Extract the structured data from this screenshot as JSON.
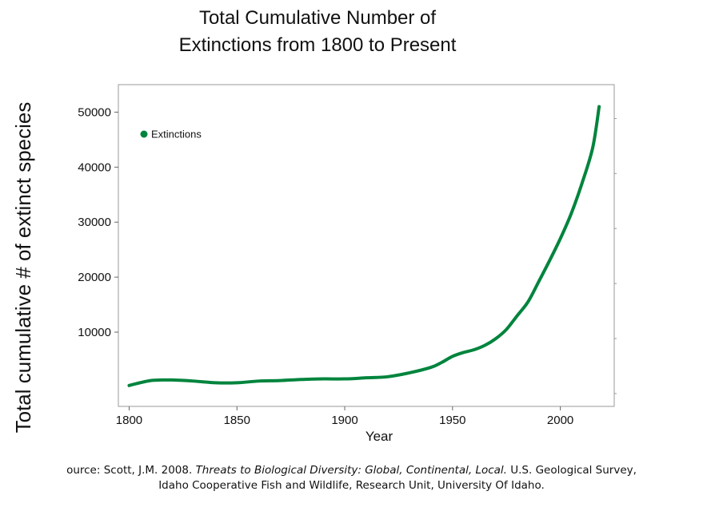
{
  "chart_data": {
    "type": "line",
    "title_lines": [
      "Total Cumulative Number of",
      "Extinctions from 1800 to Present"
    ],
    "xlabel": "Year",
    "ylabel": "Total cumulative # of extinct species",
    "xlim": [
      1795,
      2025
    ],
    "ylim": [
      -3500,
      55000
    ],
    "x_ticks": [
      1800,
      1850,
      1900,
      1950,
      2000
    ],
    "y_ticks": [
      10000,
      20000,
      30000,
      40000,
      50000
    ],
    "grid": false,
    "legend_position": "top-left",
    "series": [
      {
        "name": "Extinctions",
        "color": "#00843d",
        "x": [
          1800,
          1805,
          1810,
          1815,
          1820,
          1830,
          1840,
          1850,
          1860,
          1870,
          1880,
          1890,
          1900,
          1910,
          1920,
          1930,
          1940,
          1945,
          1950,
          1955,
          1960,
          1965,
          1970,
          1975,
          1980,
          1985,
          1990,
          1995,
          2000,
          2005,
          2010,
          2015,
          2018
        ],
        "y": [
          300,
          800,
          1200,
          1300,
          1300,
          1100,
          800,
          800,
          1100,
          1200,
          1400,
          1500,
          1500,
          1700,
          1900,
          2600,
          3600,
          4500,
          5600,
          6300,
          6800,
          7600,
          8800,
          10500,
          13000,
          15500,
          19200,
          23000,
          27000,
          31500,
          37000,
          43500,
          51000
        ]
      }
    ]
  },
  "source": {
    "prefix": "ource: Scott, J.M. 2008. ",
    "italic": "Threats to Biological Diversity: Global, Continental, Local.",
    "suffix": " U.S. Geological Survey,",
    "line2": "Idaho Cooperative Fish and Wildlife, Research Unit, University Of Idaho."
  }
}
